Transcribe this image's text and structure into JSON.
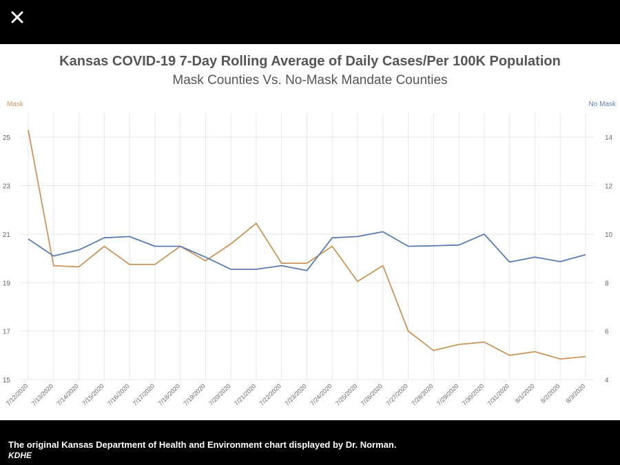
{
  "window": {
    "close_icon": "close-icon"
  },
  "caption": {
    "text": "The original Kansas Department of Health and Environment chart displayed by Dr. Norman.",
    "credit": "KDHE"
  },
  "colors": {
    "mask": "#c8955a",
    "no_mask": "#5a7ab0",
    "grid": "#e6e6e6"
  },
  "chart_data": {
    "type": "line",
    "title": "Kansas COVID-19 7-Day Rolling Average of Daily Cases/Per 100K Population",
    "subtitle": "Mask Counties Vs. No-Mask Mandate Counties",
    "left_axis_label": "Mask",
    "right_axis_label": "No Mask",
    "categories": [
      "7/12/2020",
      "7/13/2020",
      "7/14/2020",
      "7/15/2020",
      "7/16/2020",
      "7/17/2020",
      "7/18/2020",
      "7/19/2020",
      "7/20/2020",
      "7/21/2020",
      "7/22/2020",
      "7/23/2020",
      "7/24/2020",
      "7/25/2020",
      "7/26/2020",
      "7/27/2020",
      "7/28/2020",
      "7/29/2020",
      "7/30/2020",
      "7/31/2020",
      "8/1/2020",
      "8/2/2020",
      "8/3/2020"
    ],
    "left_ylim": [
      15,
      26
    ],
    "right_ylim": [
      4,
      15
    ],
    "left_ticks": [
      "25",
      "23",
      "21",
      "19",
      "17",
      "15"
    ],
    "right_ticks": [
      "14",
      "12",
      "10",
      "8",
      "6",
      "4"
    ],
    "grid": true,
    "series": [
      {
        "name": "Mask",
        "axis": "left",
        "values": [
          25.3,
          19.7,
          19.65,
          20.5,
          19.75,
          19.75,
          20.5,
          19.9,
          20.6,
          21.45,
          19.8,
          19.8,
          20.5,
          19.05,
          19.7,
          17.0,
          16.2,
          16.45,
          16.55,
          16.0,
          16.15,
          15.85,
          15.95
        ]
      },
      {
        "name": "No Mask",
        "axis": "right",
        "values": [
          9.8,
          9.1,
          9.35,
          9.85,
          9.9,
          9.5,
          9.5,
          9.05,
          8.55,
          8.55,
          8.7,
          8.5,
          9.85,
          9.9,
          10.1,
          9.5,
          9.52,
          9.55,
          10.0,
          8.85,
          9.05,
          8.87,
          9.15
        ]
      }
    ]
  }
}
